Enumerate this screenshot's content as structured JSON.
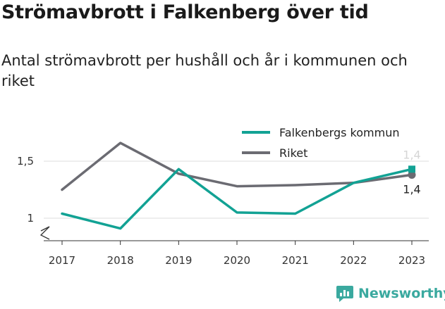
{
  "header": {
    "title": "Strömavbrott i Falkenberg över tid",
    "subtitle": "Antal strömavbrott per hushåll och år i kommunen och riket"
  },
  "brand": {
    "name": "Newsworthy",
    "icon": "newsworthy-logo-icon",
    "color": "#3aa99f"
  },
  "chart_data": {
    "type": "line",
    "x": [
      "2017",
      "2018",
      "2019",
      "2020",
      "2021",
      "2022",
      "2023"
    ],
    "series": [
      {
        "name": "Falkenbergs kommun",
        "color": "#12a294",
        "values": [
          1.04,
          0.91,
          1.43,
          1.05,
          1.04,
          1.31,
          1.43
        ],
        "end_label": "1,4"
      },
      {
        "name": "Riket",
        "color": "#6b6b72",
        "values": [
          1.25,
          1.66,
          1.39,
          1.28,
          1.29,
          1.31,
          1.38
        ],
        "end_label": "1,4"
      }
    ],
    "yticks": [
      {
        "value": 1.5,
        "label": "1,5"
      },
      {
        "value": 1.0,
        "label": "1"
      }
    ],
    "ylim": [
      0.8,
      1.8
    ],
    "axis_break": true,
    "grid": true,
    "legend_position": "top-right",
    "title": "",
    "xlabel": "",
    "ylabel": ""
  }
}
